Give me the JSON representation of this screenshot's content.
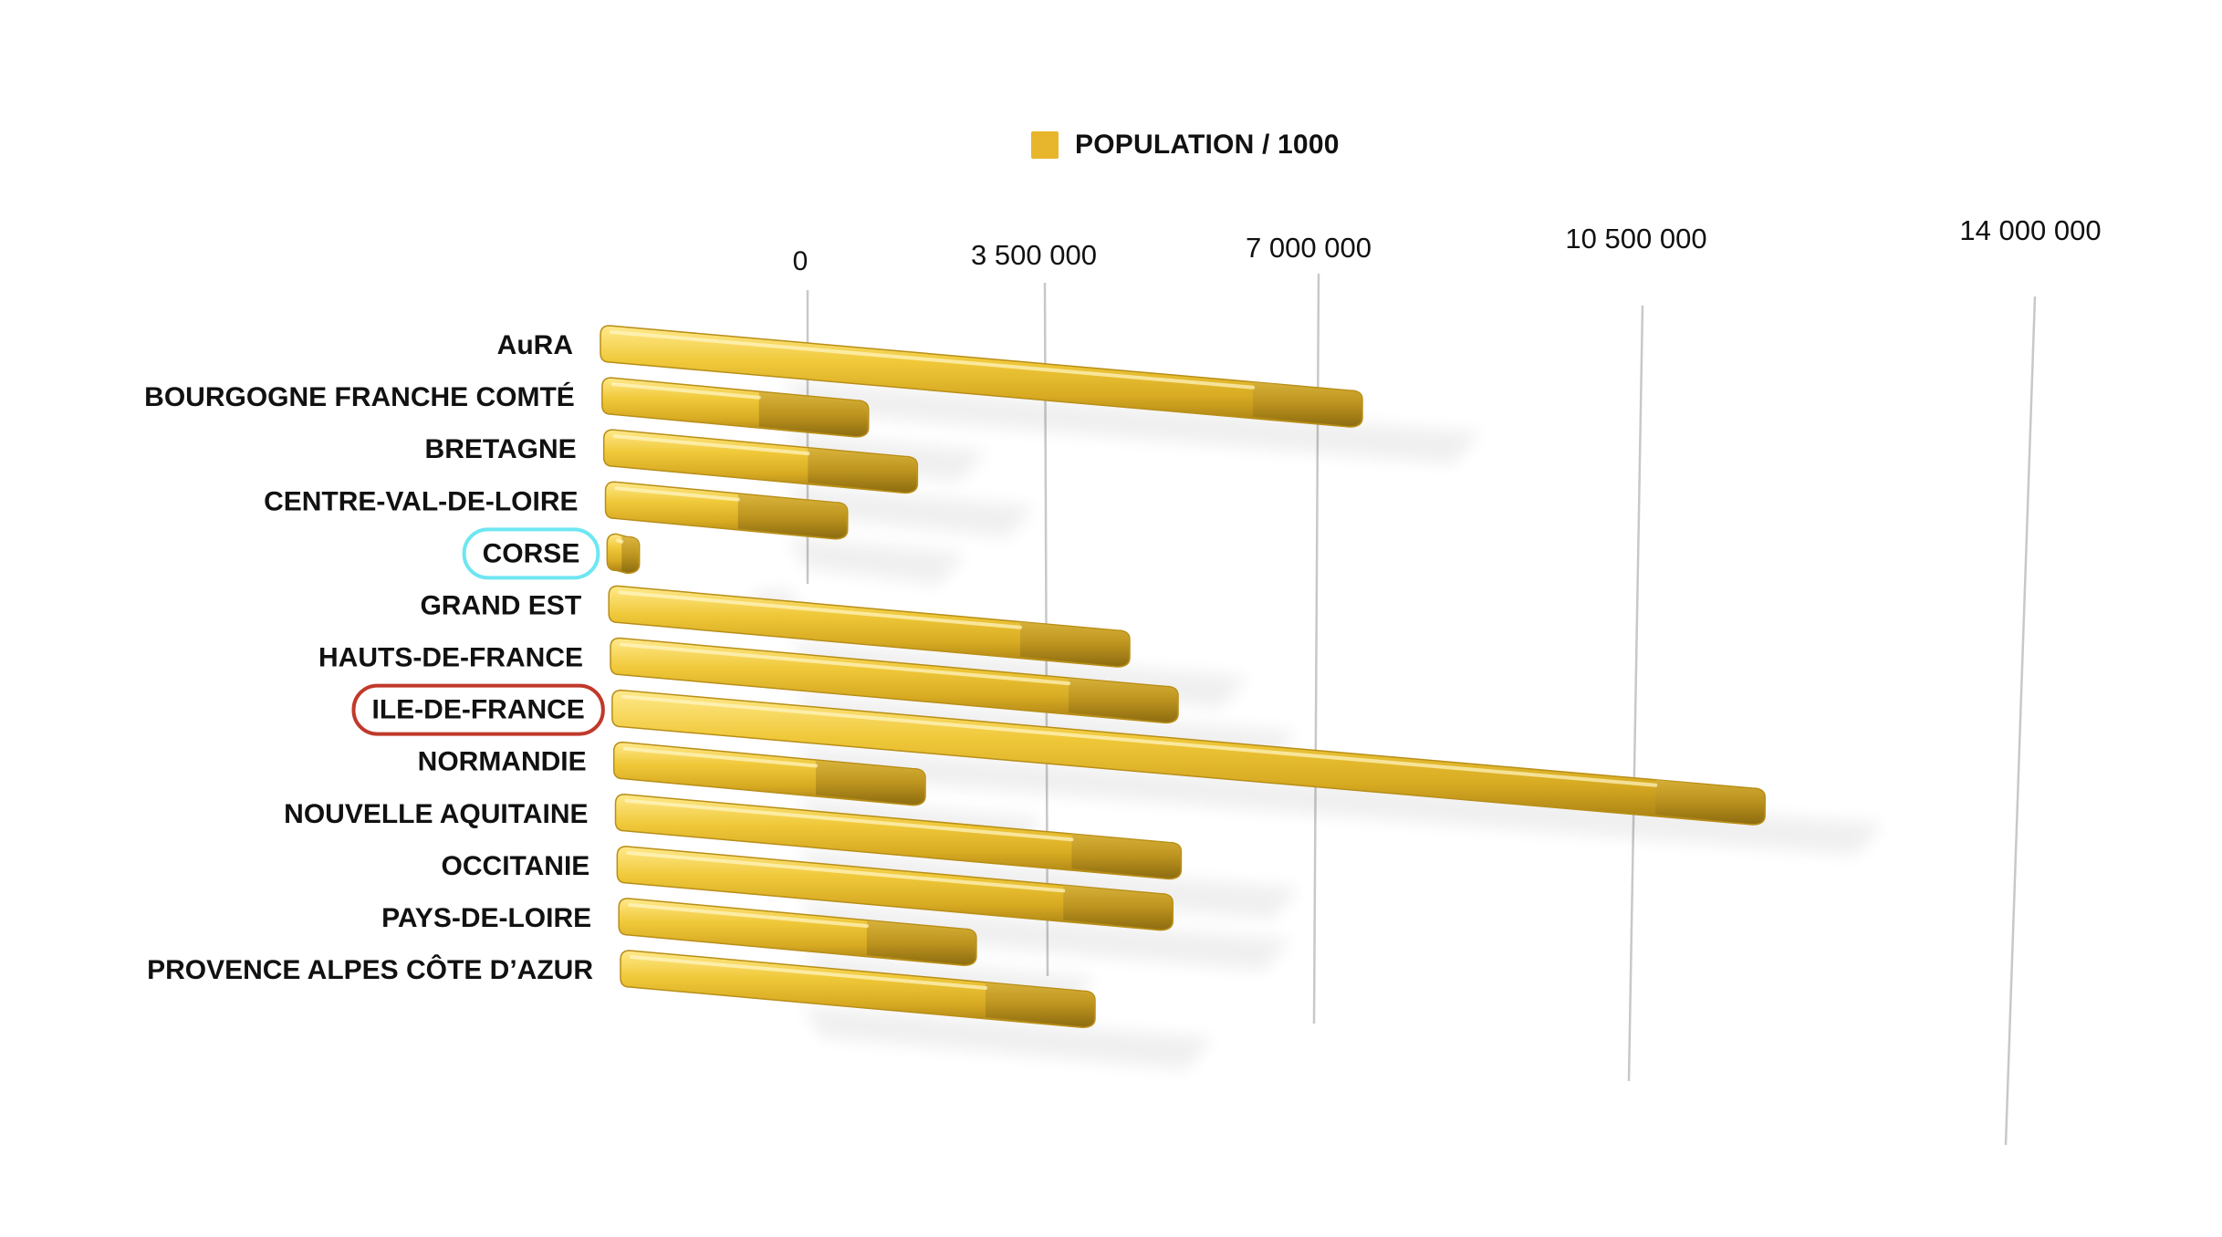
{
  "chart_data": {
    "type": "bar",
    "orientation": "horizontal",
    "three_d": true,
    "legend": {
      "position": "top",
      "label": "POPULATION / 1000",
      "color": "#E8B62C"
    },
    "categories": [
      "AuRA",
      "BOURGOGNE FRANCHE COMTÉ",
      "BRETAGNE",
      "CENTRE-VAL-DE-LOIRE",
      "CORSE",
      "GRAND EST",
      "HAUTS-DE-FRANCE",
      "ILE-DE-FRANCE",
      "NORMANDIE",
      "NOUVELLE AQUITAINE",
      "OCCITANIE",
      "PAYS-DE-LOIRE",
      "PROVENCE ALPES CÔTE D’AZUR"
    ],
    "series": [
      {
        "name": "POPULATION / 1000",
        "values": [
          8000000,
          2800000,
          3300000,
          2550000,
          340000,
          5500000,
          6000000,
          12200000,
          3300000,
          6000000,
          5900000,
          3800000,
          5050000
        ]
      }
    ],
    "x_ticks": [
      "0",
      "3 500 000",
      "7 000 000",
      "10 500 000",
      "14 000 000"
    ],
    "xlim": [
      0,
      14000000
    ],
    "grid": true,
    "highlights": [
      {
        "category": "CORSE",
        "color": "#6EE6F2"
      },
      {
        "category": "ILE-DE-FRANCE",
        "color": "#C0392B"
      }
    ],
    "bar_color": "#E8B62C"
  }
}
